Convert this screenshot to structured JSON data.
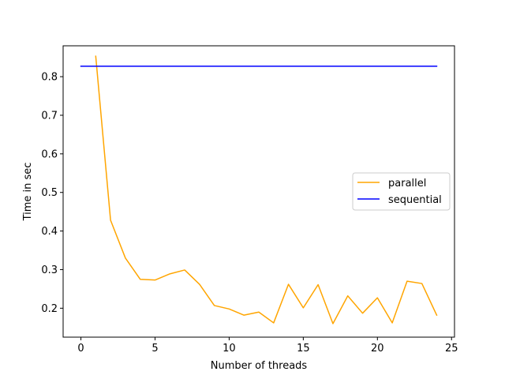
{
  "chart_data": {
    "type": "line",
    "title": "",
    "xlabel": "Number of threads",
    "ylabel": "Time in sec",
    "xlim": [
      -1.2,
      25.2
    ],
    "ylim": [
      0.125,
      0.88
    ],
    "xticks": [
      0,
      5,
      10,
      15,
      20,
      25
    ],
    "yticks": [
      0.2,
      0.3,
      0.4,
      0.5,
      0.6,
      0.7,
      0.8
    ],
    "grid": false,
    "legend_position": "center-right",
    "series": [
      {
        "name": "parallel",
        "color": "#ffa500",
        "x": [
          1,
          2,
          3,
          4,
          5,
          6,
          7,
          8,
          9,
          10,
          11,
          12,
          13,
          14,
          15,
          16,
          17,
          18,
          19,
          20,
          21,
          22,
          23,
          24
        ],
        "y": [
          0.853,
          0.428,
          0.33,
          0.275,
          0.273,
          0.289,
          0.299,
          0.262,
          0.207,
          0.198,
          0.182,
          0.19,
          0.162,
          0.262,
          0.201,
          0.261,
          0.16,
          0.232,
          0.187,
          0.227,
          0.162,
          0.27,
          0.264,
          0.182
        ]
      },
      {
        "name": "sequential",
        "color": "#0000ff",
        "x": [
          0,
          24
        ],
        "y": [
          0.827,
          0.827
        ]
      }
    ]
  }
}
